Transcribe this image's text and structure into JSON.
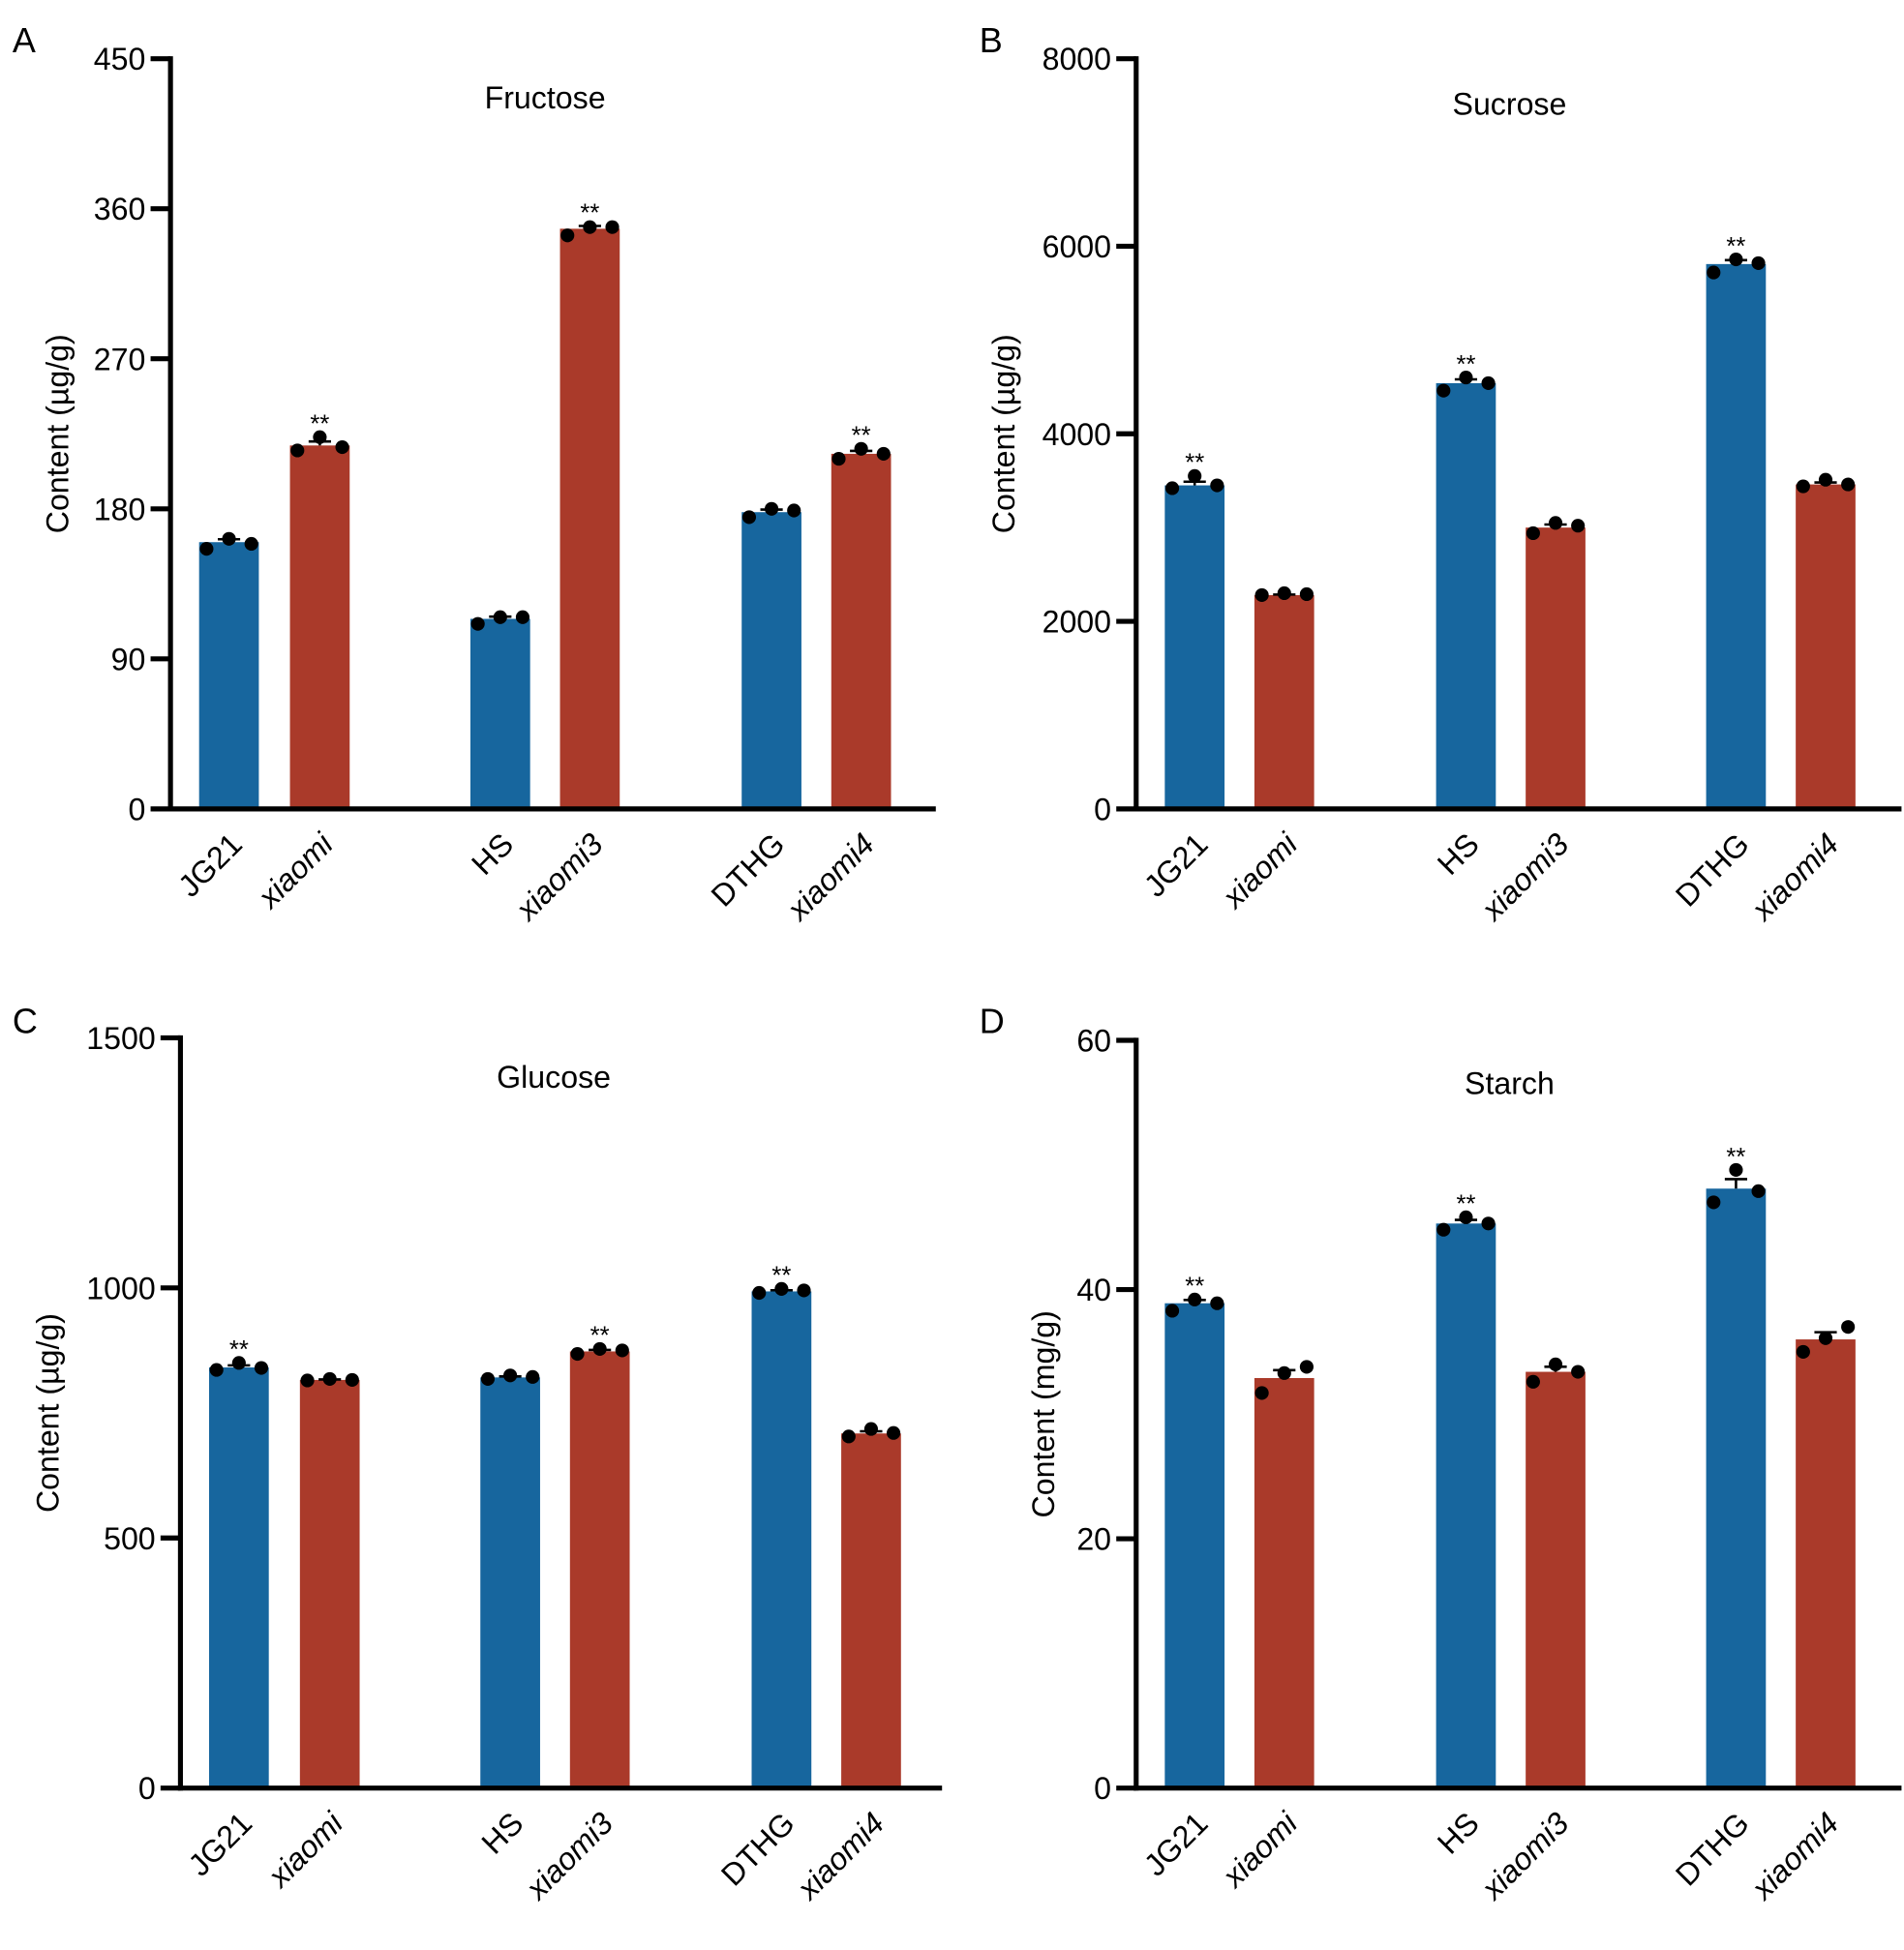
{
  "colors": {
    "wild": "#17669e",
    "mutant": "#aa3a2a",
    "axis": "#000000"
  },
  "chart_data": [
    {
      "type": "bar",
      "panel": "A",
      "title": "Fructose",
      "ylabel": "Content (µg/g)",
      "ylim": [
        0,
        450
      ],
      "yticks": [
        "0",
        "90",
        "180",
        "270",
        "360",
        "450"
      ],
      "ytick_values": [
        0,
        90,
        180,
        270,
        360,
        450
      ],
      "categories": [
        "JG21",
        "xiaomi",
        "HS",
        "xiaomi3",
        "DTHG",
        "xiaomi4"
      ],
      "values": [
        160,
        218,
        114,
        348,
        178,
        213
      ],
      "points": [
        [
          156,
          162,
          159
        ],
        [
          215,
          223,
          217
        ],
        [
          111,
          115,
          115
        ],
        [
          344,
          349,
          349
        ],
        [
          175,
          180,
          179
        ],
        [
          210,
          216,
          213
        ]
      ],
      "significance": [
        "",
        "**",
        "",
        "**",
        "",
        "**"
      ]
    },
    {
      "type": "bar",
      "panel": "B",
      "title": "Sucrose",
      "ylabel": "Content (µg/g)",
      "ylim": [
        0,
        8000
      ],
      "yticks": [
        "0",
        "2000",
        "4000",
        "6000",
        "8000"
      ],
      "ytick_values": [
        0,
        2000,
        4000,
        6000,
        8000
      ],
      "categories": [
        "JG21",
        "xiaomi",
        "HS",
        "xiaomi3",
        "DTHG",
        "xiaomi4"
      ],
      "values": [
        3450,
        2280,
        4540,
        3000,
        5810,
        3460
      ],
      "points": [
        [
          3420,
          3550,
          3450
        ],
        [
          2280,
          2300,
          2290
        ],
        [
          4460,
          4600,
          4540
        ],
        [
          2940,
          3050,
          3020
        ],
        [
          5720,
          5860,
          5820
        ],
        [
          3440,
          3510,
          3460
        ]
      ],
      "significance": [
        "**",
        "",
        "**",
        "",
        "**",
        ""
      ]
    },
    {
      "type": "bar",
      "panel": "C",
      "title": "Glucose",
      "ylabel": "Content (µg/g)",
      "ylim": [
        0,
        1500
      ],
      "yticks": [
        "0",
        "500",
        "1000",
        "1500"
      ],
      "ytick_values": [
        0,
        500,
        1000,
        1500
      ],
      "categories": [
        "JG21",
        "xiaomi",
        "HS",
        "xiaomi3",
        "DTHG",
        "xiaomi4"
      ],
      "values": [
        841,
        816,
        821,
        873,
        993,
        709
      ],
      "points": [
        [
          836,
          850,
          840
        ],
        [
          815,
          818,
          816
        ],
        [
          818,
          825,
          822
        ],
        [
          868,
          878,
          875
        ],
        [
          990,
          998,
          995
        ],
        [
          703,
          718,
          710
        ]
      ],
      "significance": [
        "**",
        "",
        "",
        "**",
        "**",
        ""
      ]
    },
    {
      "type": "bar",
      "panel": "D",
      "title": "Starch",
      "ylabel": "Content (mg/g)",
      "ylim": [
        0,
        60
      ],
      "yticks": [
        "0",
        "20",
        "40",
        "60"
      ],
      "ytick_values": [
        0,
        20,
        40,
        60
      ],
      "categories": [
        "JG21",
        "xiaomi",
        "HS",
        "xiaomi3",
        "DTHG",
        "xiaomi4"
      ],
      "values": [
        38.9,
        32.9,
        45.3,
        33.4,
        48.1,
        36.0
      ],
      "points": [
        [
          38.3,
          39.2,
          38.9
        ],
        [
          31.7,
          33.3,
          33.8
        ],
        [
          44.8,
          45.8,
          45.3
        ],
        [
          32.6,
          34.0,
          33.4
        ],
        [
          47.0,
          49.6,
          47.9
        ],
        [
          35.0,
          36.1,
          37.0
        ]
      ],
      "significance": [
        "**",
        "",
        "**",
        "",
        "**",
        ""
      ]
    }
  ]
}
